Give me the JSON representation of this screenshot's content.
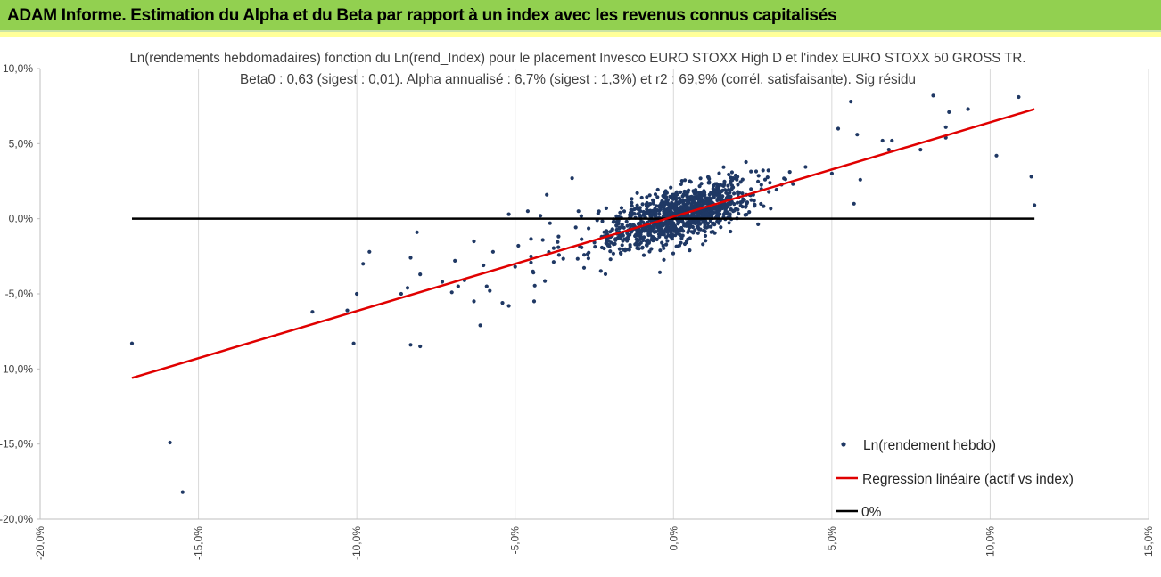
{
  "header": {
    "title": "ADAM Informe. Estimation du Alpha et du Beta par rapport à un index avec les revenus connus capitalisés"
  },
  "colors": {
    "header_bg": "#92d050",
    "strip": "#ffff99",
    "points": "#1f3864",
    "regression": "#e00000",
    "zero_line": "#000000",
    "grid": "#d9d9d9"
  },
  "chart_data": {
    "type": "scatter",
    "title": "Ln(rendements hebdomadaires) fonction du Ln(rend_Index) pour le placement Invesco EURO STOXX High D et l'index EURO STOXX 50 GROSS TR.",
    "subtitle": "Beta0 : 0,63 (sigest : 0,01). Alpha annualisé : 6,7% (sigest : 1,3%) et r2 : 69,9% (corrél. satisfaisante). Sig résidu",
    "xlim": [
      -0.2,
      0.15
    ],
    "ylim": [
      -0.2,
      0.1
    ],
    "x_ticks": [
      "-20,0%",
      "-15,0%",
      "-10,0%",
      "-5,0%",
      "0,0%",
      "5,0%",
      "10,0%",
      "15,0%"
    ],
    "y_ticks": [
      "10,0%",
      "5,0%",
      "0,0%",
      "-5,0%",
      "-10,0%",
      "-15,0%",
      "-20,0%"
    ],
    "grid_vertical": true,
    "legend_position": "bottom-right",
    "series": [
      {
        "name": "Ln(rendement hebdo)",
        "kind": "points",
        "beta": 0.63,
        "alpha_weekly": 0.00125,
        "cluster_count": 1150,
        "x": [
          -0.171,
          -0.159,
          -0.155,
          -0.114,
          -0.103,
          -0.101,
          -0.1,
          -0.098,
          -0.096,
          -0.086,
          -0.084,
          -0.083,
          -0.083,
          -0.081,
          -0.08,
          -0.08,
          -0.073,
          -0.07,
          -0.069,
          -0.068,
          -0.066,
          -0.063,
          -0.063,
          -0.061,
          -0.06,
          -0.059,
          -0.058,
          -0.057,
          -0.054,
          -0.052,
          -0.052,
          -0.05,
          -0.049,
          -0.046,
          -0.044,
          -0.042,
          -0.04,
          -0.039,
          -0.032,
          -0.03,
          0.052,
          0.056,
          0.057,
          0.058,
          0.059,
          0.066,
          0.068,
          0.069,
          0.078,
          0.082,
          0.086,
          0.086,
          0.087,
          0.093,
          0.102,
          0.109,
          0.113,
          0.114
        ],
        "y": [
          -0.083,
          -0.149,
          -0.182,
          -0.062,
          -0.061,
          -0.083,
          -0.05,
          -0.03,
          -0.022,
          -0.05,
          -0.046,
          -0.026,
          -0.084,
          -0.009,
          -0.085,
          -0.037,
          -0.042,
          -0.049,
          -0.028,
          -0.045,
          -0.041,
          -0.055,
          -0.015,
          -0.071,
          -0.031,
          -0.045,
          -0.048,
          -0.022,
          -0.056,
          -0.058,
          0.003,
          -0.032,
          -0.018,
          0.005,
          -0.055,
          0.002,
          0.016,
          -0.003,
          0.027,
          0.005,
          0.06,
          0.078,
          0.01,
          0.056,
          0.026,
          0.052,
          0.046,
          0.052,
          0.046,
          0.082,
          0.061,
          0.054,
          0.071,
          0.073,
          0.042,
          0.081,
          0.028,
          0.009
        ]
      },
      {
        "name": "Regression linéaire (actif vs index)",
        "kind": "line",
        "x": [
          -0.171,
          0.114
        ],
        "y": [
          -0.106,
          0.073
        ]
      },
      {
        "name": "0%",
        "kind": "line",
        "x": [
          -0.171,
          0.114
        ],
        "y": [
          0.0,
          0.0
        ]
      }
    ]
  }
}
